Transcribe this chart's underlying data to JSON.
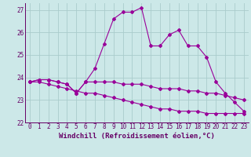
{
  "xlabel": "Windchill (Refroidissement éolien,°C)",
  "ylabel": "",
  "xlim": [
    -0.5,
    23.5
  ],
  "ylim": [
    22.0,
    27.3
  ],
  "yticks": [
    22,
    23,
    24,
    25,
    26,
    27
  ],
  "xticks": [
    0,
    1,
    2,
    3,
    4,
    5,
    6,
    7,
    8,
    9,
    10,
    11,
    12,
    13,
    14,
    15,
    16,
    17,
    18,
    19,
    20,
    21,
    22,
    23
  ],
  "bg_color": "#cce8e8",
  "grid_color": "#aacccc",
  "line_color": "#990099",
  "line1": [
    23.8,
    23.9,
    23.9,
    23.8,
    23.7,
    23.3,
    23.8,
    24.4,
    25.5,
    26.6,
    26.9,
    26.9,
    27.1,
    25.4,
    25.4,
    25.9,
    26.1,
    25.4,
    25.4,
    24.9,
    23.8,
    23.3,
    22.9,
    22.5
  ],
  "line2": [
    23.8,
    23.9,
    23.9,
    23.8,
    23.7,
    23.3,
    23.8,
    23.8,
    23.8,
    23.8,
    23.7,
    23.7,
    23.7,
    23.6,
    23.5,
    23.5,
    23.5,
    23.4,
    23.4,
    23.3,
    23.3,
    23.2,
    23.1,
    23.0
  ],
  "line3": [
    23.8,
    23.8,
    23.7,
    23.6,
    23.5,
    23.4,
    23.3,
    23.3,
    23.2,
    23.1,
    23.0,
    22.9,
    22.8,
    22.7,
    22.6,
    22.6,
    22.5,
    22.5,
    22.5,
    22.4,
    22.4,
    22.4,
    22.4,
    22.4
  ],
  "font_color": "#660066",
  "tick_fontsize": 5.5,
  "label_fontsize": 6.5
}
